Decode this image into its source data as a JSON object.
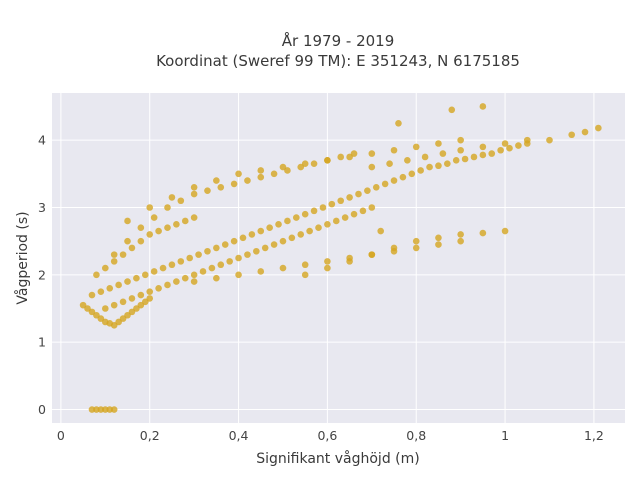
{
  "chart_data": {
    "type": "scatter",
    "title_line1": "År 1979 - 2019",
    "title_line2": "Koordinat (Sweref 99 TM): E 351243, N 6175185",
    "xlabel": "Signifikant våghöjd (m)",
    "ylabel": "Vågperiod (s)",
    "xlim": [
      -0.02,
      1.27
    ],
    "ylim": [
      -0.2,
      4.7
    ],
    "xticks": [
      {
        "value": 0,
        "label": "0"
      },
      {
        "value": 0.2,
        "label": "0,2"
      },
      {
        "value": 0.4,
        "label": "0,4"
      },
      {
        "value": 0.6,
        "label": "0,6"
      },
      {
        "value": 0.8,
        "label": "0,8"
      },
      {
        "value": 1.0,
        "label": "1"
      },
      {
        "value": 1.2,
        "label": "1,2"
      }
    ],
    "yticks": [
      {
        "value": 0,
        "label": "0"
      },
      {
        "value": 1,
        "label": "1"
      },
      {
        "value": 2,
        "label": "2"
      },
      {
        "value": 3,
        "label": "3"
      },
      {
        "value": 4,
        "label": "4"
      }
    ],
    "grid": true,
    "background_color": "#e8e8f0",
    "marker_color": "#d4a520",
    "series": [
      {
        "x": [
          0.07,
          0.08,
          0.09,
          0.1,
          0.11,
          0.12,
          0.05,
          0.06,
          0.07,
          0.08,
          0.09,
          0.1,
          0.11,
          0.12,
          0.13,
          0.14,
          0.15,
          0.16,
          0.17,
          0.18,
          0.19,
          0.2,
          0.08,
          0.1,
          0.12,
          0.14,
          0.16,
          0.18,
          0.2,
          0.22,
          0.24,
          0.26,
          0.28,
          0.3,
          0.07,
          0.09,
          0.11,
          0.13,
          0.15,
          0.17,
          0.19,
          0.21,
          0.23,
          0.25,
          0.27,
          0.29,
          0.31,
          0.33,
          0.35,
          0.37,
          0.39,
          0.41,
          0.43,
          0.45,
          0.47,
          0.49,
          0.51,
          0.53,
          0.55,
          0.57,
          0.59,
          0.61,
          0.63,
          0.65,
          0.67,
          0.69,
          0.71,
          0.73,
          0.75,
          0.77,
          0.79,
          0.81,
          0.83,
          0.85,
          0.87,
          0.89,
          0.91,
          0.93,
          0.95,
          0.97,
          0.99,
          1.01,
          1.03,
          1.05,
          1.1,
          1.15,
          1.18,
          1.21,
          0.1,
          0.12,
          0.14,
          0.16,
          0.18,
          0.2,
          0.22,
          0.24,
          0.26,
          0.28,
          0.3,
          0.32,
          0.34,
          0.36,
          0.38,
          0.4,
          0.42,
          0.44,
          0.46,
          0.48,
          0.5,
          0.52,
          0.54,
          0.56,
          0.58,
          0.6,
          0.62,
          0.64,
          0.66,
          0.68,
          0.7,
          0.12,
          0.15,
          0.18,
          0.21,
          0.24,
          0.27,
          0.3,
          0.33,
          0.36,
          0.39,
          0.42,
          0.45,
          0.48,
          0.51,
          0.54,
          0.57,
          0.6,
          0.63,
          0.66,
          0.7,
          0.74,
          0.78,
          0.82,
          0.86,
          0.9,
          0.95,
          1.0,
          1.05,
          0.15,
          0.2,
          0.25,
          0.3,
          0.35,
          0.4,
          0.45,
          0.5,
          0.55,
          0.6,
          0.65,
          0.7,
          0.75,
          0.8,
          0.85,
          0.9,
          0.55,
          0.6,
          0.65,
          0.7,
          0.75,
          0.8,
          0.85,
          0.9,
          0.95,
          1.0,
          0.3,
          0.35,
          0.4,
          0.45,
          0.5,
          0.55,
          0.6,
          0.65,
          0.7,
          0.75,
          0.8,
          0.85,
          0.9,
          0.88,
          0.95,
          0.76,
          0.72
        ],
        "y": [
          0,
          0,
          0,
          0,
          0,
          0,
          1.55,
          1.5,
          1.45,
          1.4,
          1.35,
          1.3,
          1.28,
          1.25,
          1.3,
          1.35,
          1.4,
          1.45,
          1.5,
          1.55,
          1.6,
          1.65,
          2.0,
          2.1,
          2.2,
          2.3,
          2.4,
          2.5,
          2.6,
          2.65,
          2.7,
          2.75,
          2.8,
          2.85,
          1.7,
          1.75,
          1.8,
          1.85,
          1.9,
          1.95,
          2.0,
          2.05,
          2.1,
          2.15,
          2.2,
          2.25,
          2.3,
          2.35,
          2.4,
          2.45,
          2.5,
          2.55,
          2.6,
          2.65,
          2.7,
          2.75,
          2.8,
          2.85,
          2.9,
          2.95,
          3.0,
          3.05,
          3.1,
          3.15,
          3.2,
          3.25,
          3.3,
          3.35,
          3.4,
          3.45,
          3.5,
          3.55,
          3.6,
          3.62,
          3.65,
          3.7,
          3.72,
          3.75,
          3.78,
          3.8,
          3.85,
          3.88,
          3.92,
          3.95,
          4.0,
          4.08,
          4.12,
          4.18,
          1.5,
          1.55,
          1.6,
          1.65,
          1.7,
          1.75,
          1.8,
          1.85,
          1.9,
          1.95,
          2.0,
          2.05,
          2.1,
          2.15,
          2.2,
          2.25,
          2.3,
          2.35,
          2.4,
          2.45,
          2.5,
          2.55,
          2.6,
          2.65,
          2.7,
          2.75,
          2.8,
          2.85,
          2.9,
          2.95,
          3.0,
          2.3,
          2.5,
          2.7,
          2.85,
          3.0,
          3.1,
          3.2,
          3.25,
          3.3,
          3.35,
          3.4,
          3.45,
          3.5,
          3.55,
          3.6,
          3.65,
          3.7,
          3.75,
          3.8,
          3.6,
          3.65,
          3.7,
          3.75,
          3.8,
          3.85,
          3.9,
          3.95,
          4.0,
          2.8,
          3.0,
          3.15,
          3.3,
          3.4,
          3.5,
          3.55,
          3.6,
          3.65,
          3.7,
          3.75,
          3.8,
          3.85,
          3.9,
          3.95,
          4.0,
          2.0,
          2.1,
          2.2,
          2.3,
          2.4,
          2.5,
          2.55,
          2.6,
          2.62,
          2.65,
          1.9,
          1.95,
          2.0,
          2.05,
          2.1,
          2.15,
          2.2,
          2.25,
          2.3,
          2.35,
          2.4,
          2.45,
          2.5,
          4.45,
          4.5,
          4.25,
          2.65
        ]
      }
    ]
  }
}
